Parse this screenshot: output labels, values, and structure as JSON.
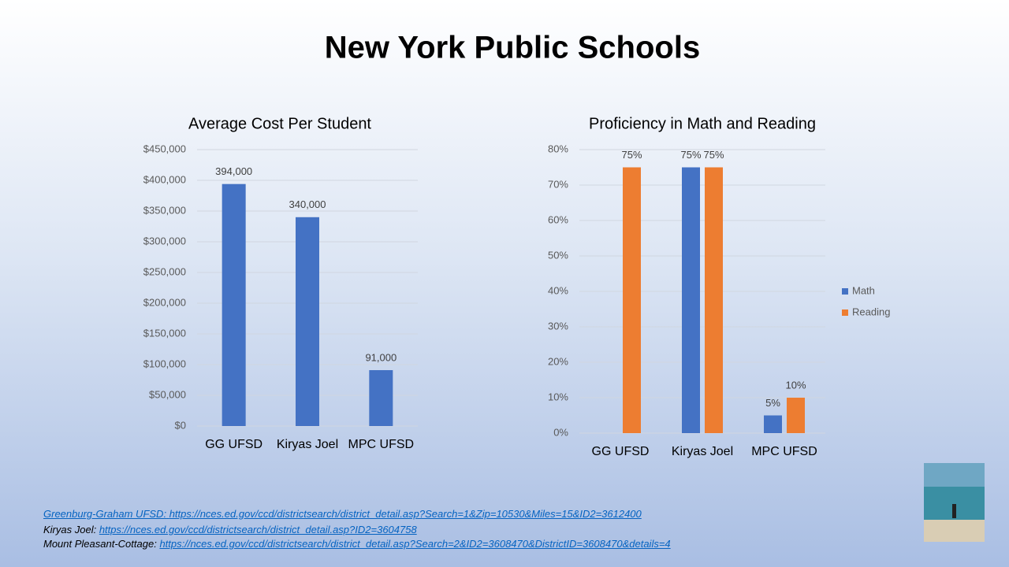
{
  "title": "New York Public Schools",
  "chart_data": [
    {
      "type": "bar",
      "title": "Average Cost Per Student",
      "categories": [
        "GG UFSD",
        "Kiryas Joel",
        "MPC UFSD"
      ],
      "values": [
        394000,
        340000,
        91000
      ],
      "value_labels": [
        "394,000",
        "340,000",
        "91,000"
      ],
      "color": "#4472c4",
      "ylim": [
        0,
        450000
      ],
      "yticks": [
        {
          "value": 0,
          "label": "$0"
        },
        {
          "value": 50000,
          "label": "$50,000"
        },
        {
          "value": 100000,
          "label": "$100,000"
        },
        {
          "value": 150000,
          "label": "$150,000"
        },
        {
          "value": 200000,
          "label": "$200,000"
        },
        {
          "value": 250000,
          "label": "$250,000"
        },
        {
          "value": 300000,
          "label": "$300,000"
        },
        {
          "value": 350000,
          "label": "$350,000"
        },
        {
          "value": 400000,
          "label": "$400,000"
        },
        {
          "value": 450000,
          "label": "$450,000"
        }
      ],
      "grid": true
    },
    {
      "type": "bar",
      "title": "Proficiency in Math and Reading",
      "categories": [
        "GG UFSD",
        "Kiryas Joel",
        "MPC UFSD"
      ],
      "series": [
        {
          "name": "Math",
          "color": "#4472c4",
          "values": [
            null,
            75,
            5
          ],
          "value_labels": [
            null,
            "75%",
            "5%"
          ]
        },
        {
          "name": "Reading",
          "color": "#ed7d31",
          "values": [
            75,
            75,
            10
          ],
          "value_labels": [
            "75%",
            "75%",
            "10%"
          ]
        }
      ],
      "ylim": [
        0,
        80
      ],
      "yticks": [
        {
          "value": 0,
          "label": "0%"
        },
        {
          "value": 10,
          "label": "10%"
        },
        {
          "value": 20,
          "label": "20%"
        },
        {
          "value": 30,
          "label": "30%"
        },
        {
          "value": 40,
          "label": "40%"
        },
        {
          "value": 50,
          "label": "50%"
        },
        {
          "value": 60,
          "label": "60%"
        },
        {
          "value": 70,
          "label": "70%"
        },
        {
          "value": 80,
          "label": "80%"
        }
      ],
      "grid": true,
      "legend": "right"
    }
  ],
  "sources": [
    {
      "label": "Greenburg-Graham UFSD:",
      "url": "https://nces.ed.gov/ccd/districtsearch/district_detail.asp?Search=1&Zip=10530&Miles=15&ID2=3612400"
    },
    {
      "label": "Kiryas Joel:",
      "url": "https://nces.ed.gov/ccd/districtsearch/district_detail.asp?ID2=3604758"
    },
    {
      "label": "Mount Pleasant-Cottage:",
      "url": "https://nces.ed.gov/ccd/districtsearch/district_detail.asp?Search=2&ID2=3608470&DistrictID=3608470&details=4"
    }
  ]
}
